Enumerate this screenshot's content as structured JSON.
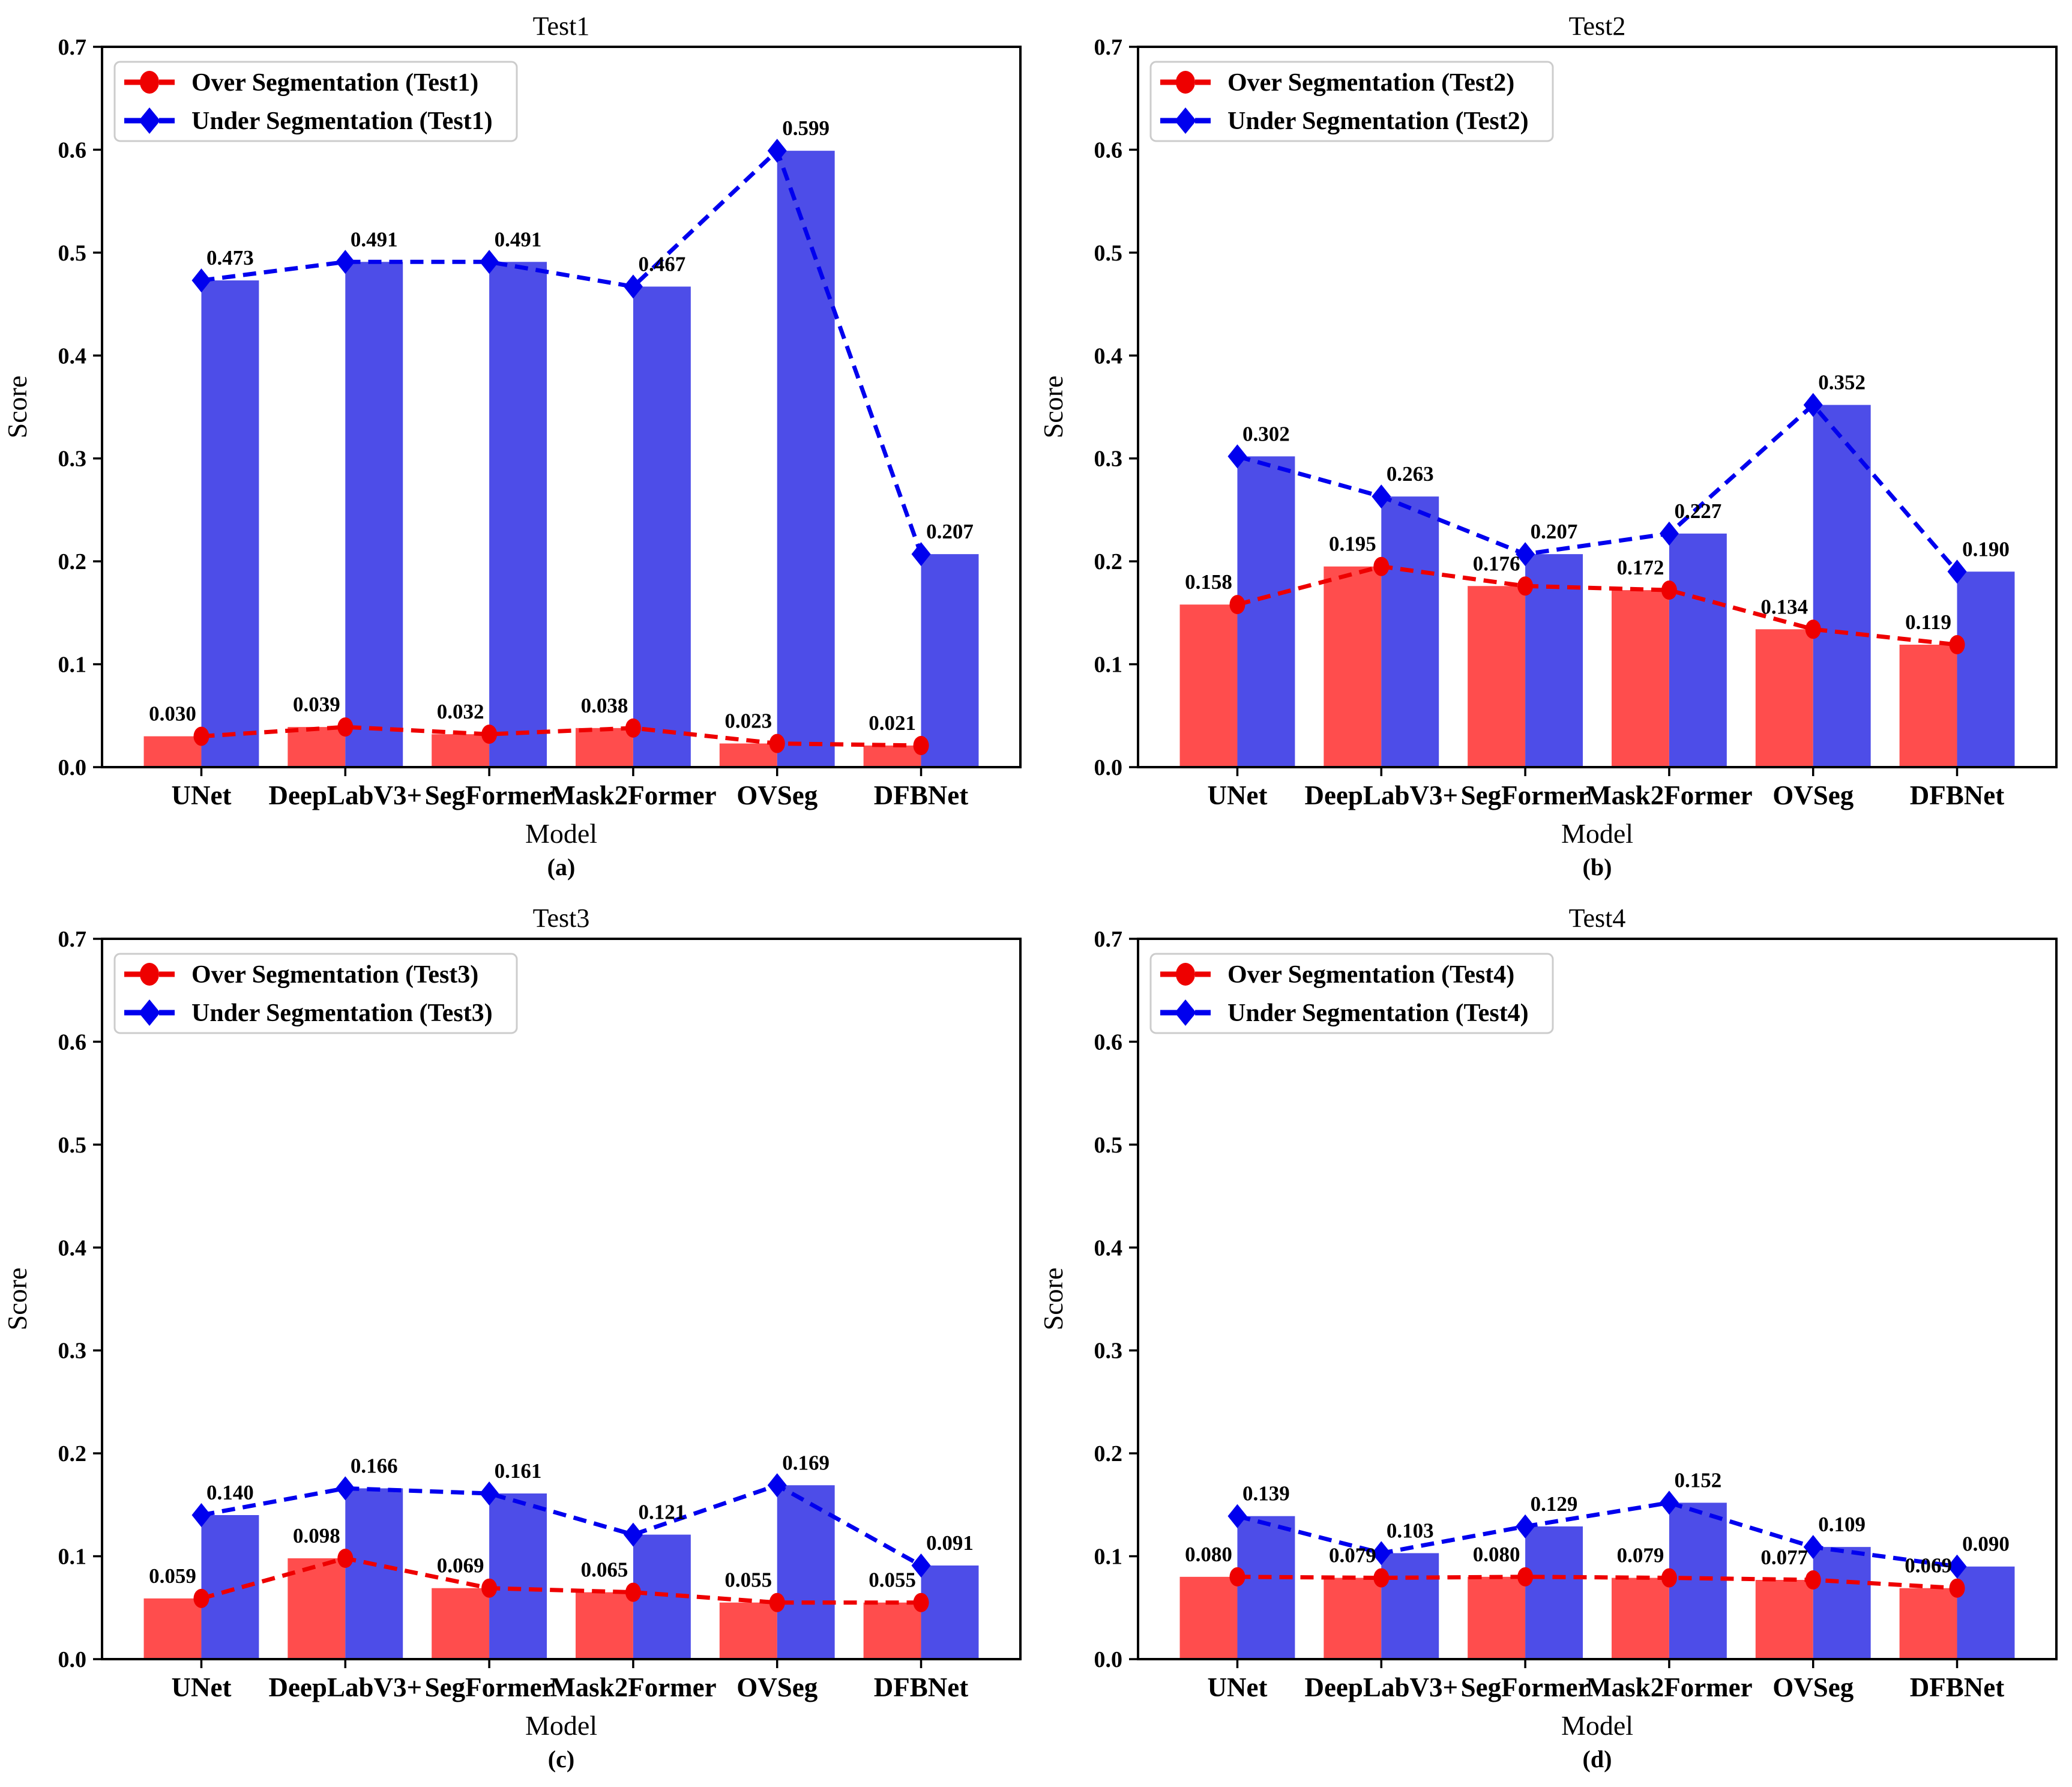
{
  "figure": {
    "background": "#ffffff",
    "layout": "2x2-grid",
    "axis_color": "#000000",
    "legend_border_color": "#cccccc"
  },
  "chart_data": [
    {
      "type": "bar",
      "overlay": "line",
      "title": "Test1",
      "caption": "(a)",
      "xlabel": "Model",
      "ylabel": "Score",
      "ylim": [
        0.0,
        0.7
      ],
      "yticks": [
        0.0,
        0.1,
        0.2,
        0.3,
        0.4,
        0.5,
        0.6,
        0.7
      ],
      "ytick_labels": [
        "0.0",
        "0.1",
        "0.2",
        "0.3",
        "0.4",
        "0.5",
        "0.6",
        "0.7"
      ],
      "categories": [
        "UNet",
        "DeepLabV3+",
        "SegFormer",
        "Mask2Former",
        "OVSeg",
        "DFBNet"
      ],
      "grid": false,
      "legend_position": "upper left",
      "series": [
        {
          "name": "Over Segmentation (Test1)",
          "marker": "circle",
          "line_style": "dashed",
          "line_color": "#ee0000",
          "bar_color": "#ff4d4d",
          "values": [
            0.03,
            0.039,
            0.032,
            0.038,
            0.023,
            0.021
          ],
          "labels": [
            "0.030",
            "0.039",
            "0.032",
            "0.038",
            "0.023",
            "0.021"
          ]
        },
        {
          "name": "Under Segmentation (Test1)",
          "marker": "diamond",
          "line_style": "dashed",
          "line_color": "#0000ee",
          "bar_color": "#4d4de8",
          "values": [
            0.473,
            0.491,
            0.491,
            0.467,
            0.599,
            0.207
          ],
          "labels": [
            "0.473",
            "0.491",
            "0.491",
            "0.467",
            "0.599",
            "0.207"
          ]
        }
      ]
    },
    {
      "type": "bar",
      "overlay": "line",
      "title": "Test2",
      "caption": "(b)",
      "xlabel": "Model",
      "ylabel": "Score",
      "ylim": [
        0.0,
        0.7
      ],
      "yticks": [
        0.0,
        0.1,
        0.2,
        0.3,
        0.4,
        0.5,
        0.6,
        0.7
      ],
      "ytick_labels": [
        "0.0",
        "0.1",
        "0.2",
        "0.3",
        "0.4",
        "0.5",
        "0.6",
        "0.7"
      ],
      "categories": [
        "UNet",
        "DeepLabV3+",
        "SegFormer",
        "Mask2Former",
        "OVSeg",
        "DFBNet"
      ],
      "grid": false,
      "legend_position": "upper left",
      "series": [
        {
          "name": "Over Segmentation (Test2)",
          "marker": "circle",
          "line_style": "dashed",
          "line_color": "#ee0000",
          "bar_color": "#ff4d4d",
          "values": [
            0.158,
            0.195,
            0.176,
            0.172,
            0.134,
            0.119
          ],
          "labels": [
            "0.158",
            "0.195",
            "0.176",
            "0.172",
            "0.134",
            "0.119"
          ]
        },
        {
          "name": "Under Segmentation (Test2)",
          "marker": "diamond",
          "line_style": "dashed",
          "line_color": "#0000ee",
          "bar_color": "#4d4de8",
          "values": [
            0.302,
            0.263,
            0.207,
            0.227,
            0.352,
            0.19
          ],
          "labels": [
            "0.302",
            "0.263",
            "0.207",
            "0.227",
            "0.352",
            "0.190"
          ]
        }
      ]
    },
    {
      "type": "bar",
      "overlay": "line",
      "title": "Test3",
      "caption": "(c)",
      "xlabel": "Model",
      "ylabel": "Score",
      "ylim": [
        0.0,
        0.7
      ],
      "yticks": [
        0.0,
        0.1,
        0.2,
        0.3,
        0.4,
        0.5,
        0.6,
        0.7
      ],
      "ytick_labels": [
        "0.0",
        "0.1",
        "0.2",
        "0.3",
        "0.4",
        "0.5",
        "0.6",
        "0.7"
      ],
      "categories": [
        "UNet",
        "DeepLabV3+",
        "SegFormer",
        "Mask2Former",
        "OVSeg",
        "DFBNet"
      ],
      "grid": false,
      "legend_position": "upper left",
      "series": [
        {
          "name": "Over Segmentation (Test3)",
          "marker": "circle",
          "line_style": "dashed",
          "line_color": "#ee0000",
          "bar_color": "#ff4d4d",
          "values": [
            0.059,
            0.098,
            0.069,
            0.065,
            0.055,
            0.055
          ],
          "labels": [
            "0.059",
            "0.098",
            "0.069",
            "0.065",
            "0.055",
            "0.055"
          ]
        },
        {
          "name": "Under Segmentation (Test3)",
          "marker": "diamond",
          "line_style": "dashed",
          "line_color": "#0000ee",
          "bar_color": "#4d4de8",
          "values": [
            0.14,
            0.166,
            0.161,
            0.121,
            0.169,
            0.091
          ],
          "labels": [
            "0.140",
            "0.166",
            "0.161",
            "0.121",
            "0.169",
            "0.091"
          ]
        }
      ]
    },
    {
      "type": "bar",
      "overlay": "line",
      "title": "Test4",
      "caption": "(d)",
      "xlabel": "Model",
      "ylabel": "Score",
      "ylim": [
        0.0,
        0.7
      ],
      "yticks": [
        0.0,
        0.1,
        0.2,
        0.3,
        0.4,
        0.5,
        0.6,
        0.7
      ],
      "ytick_labels": [
        "0.0",
        "0.1",
        "0.2",
        "0.3",
        "0.4",
        "0.5",
        "0.6",
        "0.7"
      ],
      "categories": [
        "UNet",
        "DeepLabV3+",
        "SegFormer",
        "Mask2Former",
        "OVSeg",
        "DFBNet"
      ],
      "grid": false,
      "legend_position": "upper left",
      "series": [
        {
          "name": "Over Segmentation (Test4)",
          "marker": "circle",
          "line_style": "dashed",
          "line_color": "#ee0000",
          "bar_color": "#ff4d4d",
          "values": [
            0.08,
            0.079,
            0.08,
            0.079,
            0.077,
            0.069
          ],
          "labels": [
            "0.080",
            "0.079",
            "0.080",
            "0.079",
            "0.077",
            "0.069"
          ]
        },
        {
          "name": "Under Segmentation (Test4)",
          "marker": "diamond",
          "line_style": "dashed",
          "line_color": "#0000ee",
          "bar_color": "#4d4de8",
          "values": [
            0.139,
            0.103,
            0.129,
            0.152,
            0.109,
            0.09
          ],
          "labels": [
            "0.139",
            "0.103",
            "0.129",
            "0.152",
            "0.109",
            "0.090"
          ]
        }
      ]
    }
  ]
}
